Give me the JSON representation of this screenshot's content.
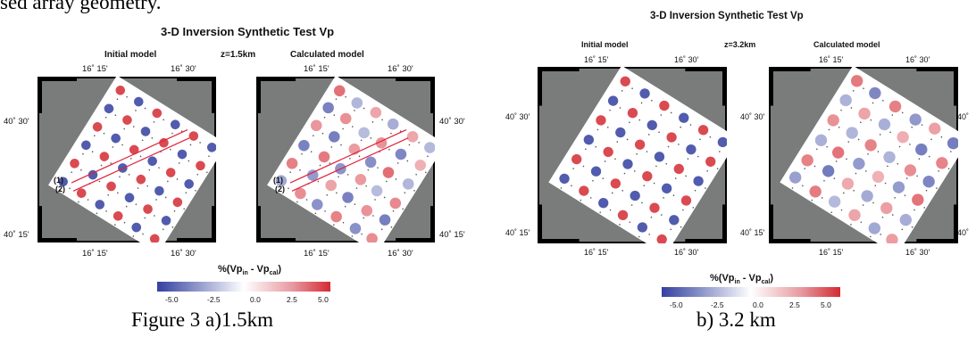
{
  "top_text": "sed array geometry.",
  "figures": [
    {
      "title": "3-D Inversion Synthetic Test Vp",
      "left_label": "Initial model",
      "depth_label": "z=1.5km",
      "right_label": "Calculated model",
      "lon_ticks": [
        "16˚ 15'",
        "16˚ 30'"
      ],
      "lat_ticks": [
        "40˚ 30'",
        "40˚ 15'"
      ],
      "profile_labels": [
        "(1)",
        "(2)"
      ],
      "colorbar": {
        "title_main": "%(Vp",
        "title_sub1": "in",
        "title_mid": " - Vp",
        "title_sub2": "cal",
        "title_end": ")",
        "ticks": [
          "-5.0",
          "-2.5",
          "0.0",
          "2.5",
          "5.0"
        ],
        "colors": [
          "#3340a0",
          "#ffffff",
          "#d42a33"
        ]
      },
      "caption": "Figure 3 a)1.5km"
    },
    {
      "title": "3-D Inversion Synthetic Test Vp",
      "left_label": "Initial model",
      "depth_label": "z=3.2km",
      "right_label": "Calculated model",
      "lon_ticks": [
        "16˚ 15'",
        "16˚ 30'"
      ],
      "lat_ticks": [
        "40˚ 30'",
        "40˚ 15'"
      ],
      "colorbar": {
        "title_main": "%(Vp",
        "title_sub1": "in",
        "title_mid": " - Vp",
        "title_sub2": "cal",
        "title_end": ")",
        "ticks": [
          "-5.0",
          "-2.5",
          "0.0",
          "2.5",
          "5.0"
        ],
        "colors": [
          "#3340a0",
          "#ffffff",
          "#d42a33"
        ]
      },
      "caption": "b) 3.2 km"
    }
  ],
  "colors": {
    "background_gray": "#7a7c7c",
    "frame_black": "#000000",
    "profile_red": "#e0203a",
    "anomaly_red": "#d42a33",
    "anomaly_blue": "#3340a0"
  }
}
